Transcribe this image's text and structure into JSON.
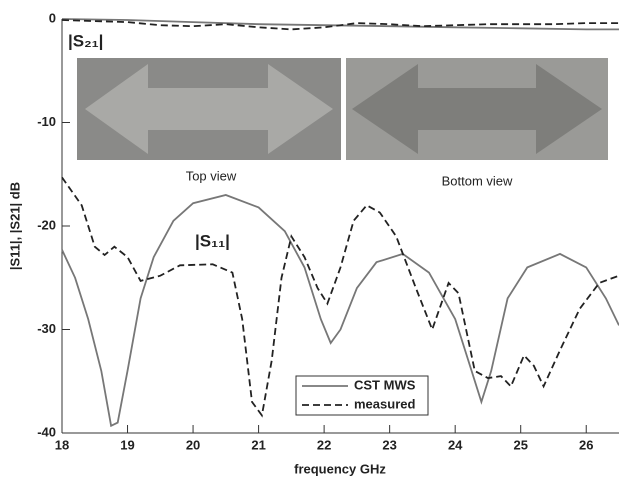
{
  "chart_data": {
    "type": "line",
    "xlabel": "frequency GHz",
    "ylabel": "|S11|, |S21|  dB",
    "xlim": [
      18,
      26.5
    ],
    "xticks": [
      18,
      19,
      20,
      21,
      22,
      23,
      24,
      25,
      26
    ],
    "ylim": [
      -40,
      0
    ],
    "yticks": [
      0,
      -10,
      -20,
      -30,
      -40
    ],
    "annotations": [
      "|S₂₁|",
      "|S₁₁|",
      "Top view",
      "Bottom view"
    ],
    "legend": "bottom-center",
    "series": [
      {
        "name": "CST MWS",
        "color": "#777777",
        "dash": false,
        "x": [
          18,
          18.2,
          18.4,
          18.6,
          18.75,
          18.85,
          19.0,
          19.2,
          19.4,
          19.7,
          20.0,
          20.5,
          21.0,
          21.4,
          21.7,
          21.95,
          22.1,
          22.25,
          22.5,
          22.8,
          23.2,
          23.6,
          24.0,
          24.25,
          24.4,
          24.55,
          24.8,
          25.1,
          25.6,
          26.0,
          26.3,
          26.5
        ],
        "values": [
          -22.3,
          -25,
          -29,
          -34,
          -39.3,
          -39,
          -34,
          -27,
          -23,
          -19.5,
          -17.8,
          -17,
          -18.2,
          -20.5,
          -24,
          -29,
          -31.3,
          -30,
          -26,
          -23.5,
          -22.7,
          -24.5,
          -29,
          -34,
          -37,
          -34,
          -27,
          -24,
          -22.7,
          -24,
          -27,
          -29.6
        ]
      },
      {
        "name": "measured",
        "color": "#222222",
        "dash": true,
        "x": [
          18,
          18.3,
          18.5,
          18.65,
          18.8,
          19.0,
          19.2,
          19.5,
          19.8,
          20.3,
          20.6,
          20.75,
          20.9,
          21.05,
          21.2,
          21.35,
          21.5,
          21.7,
          21.9,
          22.05,
          22.25,
          22.45,
          22.65,
          22.85,
          23.1,
          23.4,
          23.65,
          23.9,
          24.05,
          24.3,
          24.5,
          24.7,
          24.85,
          25.05,
          25.2,
          25.35,
          25.6,
          25.9,
          26.2,
          26.5
        ],
        "values": [
          -15.3,
          -18,
          -22,
          -22.8,
          -22,
          -23,
          -25.3,
          -24.8,
          -23.8,
          -23.7,
          -24.5,
          -29,
          -37,
          -38.3,
          -33,
          -25,
          -21,
          -23,
          -26,
          -27.5,
          -24,
          -19.5,
          -18,
          -18.7,
          -21,
          -26,
          -30,
          -25.5,
          -26.5,
          -34,
          -34.7,
          -34.5,
          -35.5,
          -32.5,
          -33.5,
          -35.5,
          -32,
          -28,
          -25.5,
          -24.8
        ]
      },
      {
        "color": "#777777",
        "dash": false,
        "x": [
          18,
          19,
          20,
          21,
          22,
          23,
          24,
          25,
          26,
          26.5
        ],
        "values": [
          0,
          -0.1,
          -0.3,
          -0.5,
          -0.6,
          -0.7,
          -0.8,
          -0.9,
          -1.0,
          -1.0
        ]
      },
      {
        "color": "#222222",
        "dash": true,
        "x": [
          18,
          18.5,
          19,
          19.5,
          20,
          20.5,
          21,
          21.5,
          22,
          22.5,
          23,
          23.5,
          24,
          24.5,
          25,
          25.5,
          26,
          26.5
        ],
        "values": [
          -0.1,
          -0.2,
          -0.3,
          -0.6,
          -0.7,
          -0.5,
          -0.8,
          -1.0,
          -0.8,
          -0.4,
          -0.5,
          -0.7,
          -0.6,
          -0.5,
          -0.5,
          -0.5,
          -0.4,
          -0.4
        ]
      }
    ]
  }
}
